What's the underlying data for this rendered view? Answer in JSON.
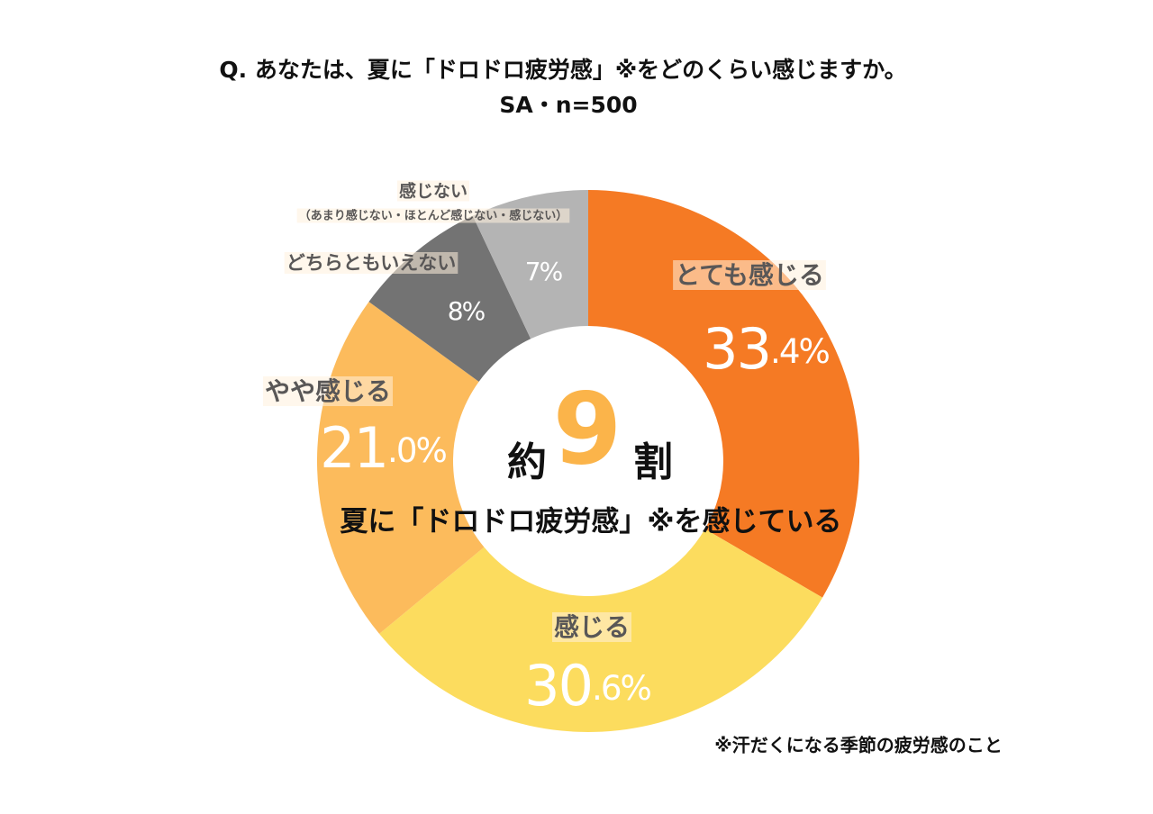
{
  "chart_data": {
    "type": "donut",
    "title": "Q. あなたは、夏に「ドロドロ疲労感」※をどのくらい感じますか。",
    "subtitle": "SA・n=500",
    "categories": [
      "とても感じる",
      "感じる",
      "やや感じる",
      "どちらともいえない",
      "感じない"
    ],
    "category_note": "（あまり感じない・ほとんど感じない・感じない）",
    "values": [
      33.4,
      30.6,
      21.0,
      8,
      7
    ],
    "value_labels": [
      "33.4%",
      "30.6%",
      "21.0%",
      "8%",
      "7%"
    ],
    "colors": [
      "#f57a24",
      "#fcdc5e",
      "#fcbb5c",
      "#737373",
      "#b4b4b4"
    ],
    "center_prefix": "約",
    "center_number": "9",
    "center_suffix": "割",
    "center_caption": "夏に「ドロドロ疲労感」※を感じている",
    "footnote": "※汗だくになる季節の疲労感のこと"
  }
}
